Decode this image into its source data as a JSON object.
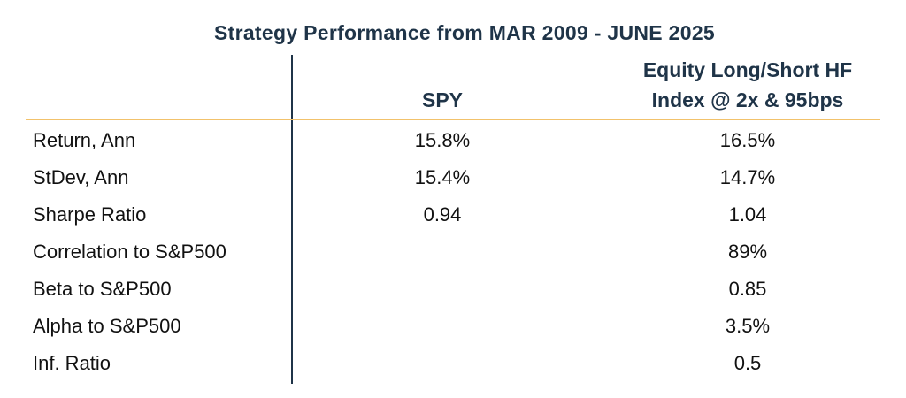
{
  "title": "Strategy Performance from MAR 2009 - JUNE 2025",
  "columns": {
    "spy": "SPY",
    "hf_line1": "Equity Long/Short HF",
    "hf_line2": "Index @ 2x & 95bps"
  },
  "colors": {
    "header_text": "#1f3448",
    "divider_vertical": "#1f3448",
    "divider_horizontal": "#f2c26b"
  },
  "chart_data": {
    "type": "table",
    "title": "Strategy Performance from MAR 2009 - JUNE 2025",
    "columns": [
      "",
      "SPY",
      "Equity Long/Short HF Index @ 2x & 95bps"
    ],
    "rows": [
      {
        "label": "Return, Ann",
        "spy": "15.8%",
        "hf": "16.5%"
      },
      {
        "label": "StDev, Ann",
        "spy": "15.4%",
        "hf": "14.7%"
      },
      {
        "label": "Sharpe Ratio",
        "spy": "0.94",
        "hf": "1.04"
      },
      {
        "label": "Correlation to S&P500",
        "spy": "",
        "hf": "89%"
      },
      {
        "label": "Beta to S&P500",
        "spy": "",
        "hf": "0.85"
      },
      {
        "label": "Alpha to S&P500",
        "spy": "",
        "hf": "3.5%"
      },
      {
        "label": "Inf. Ratio",
        "spy": "",
        "hf": "0.5"
      }
    ]
  }
}
